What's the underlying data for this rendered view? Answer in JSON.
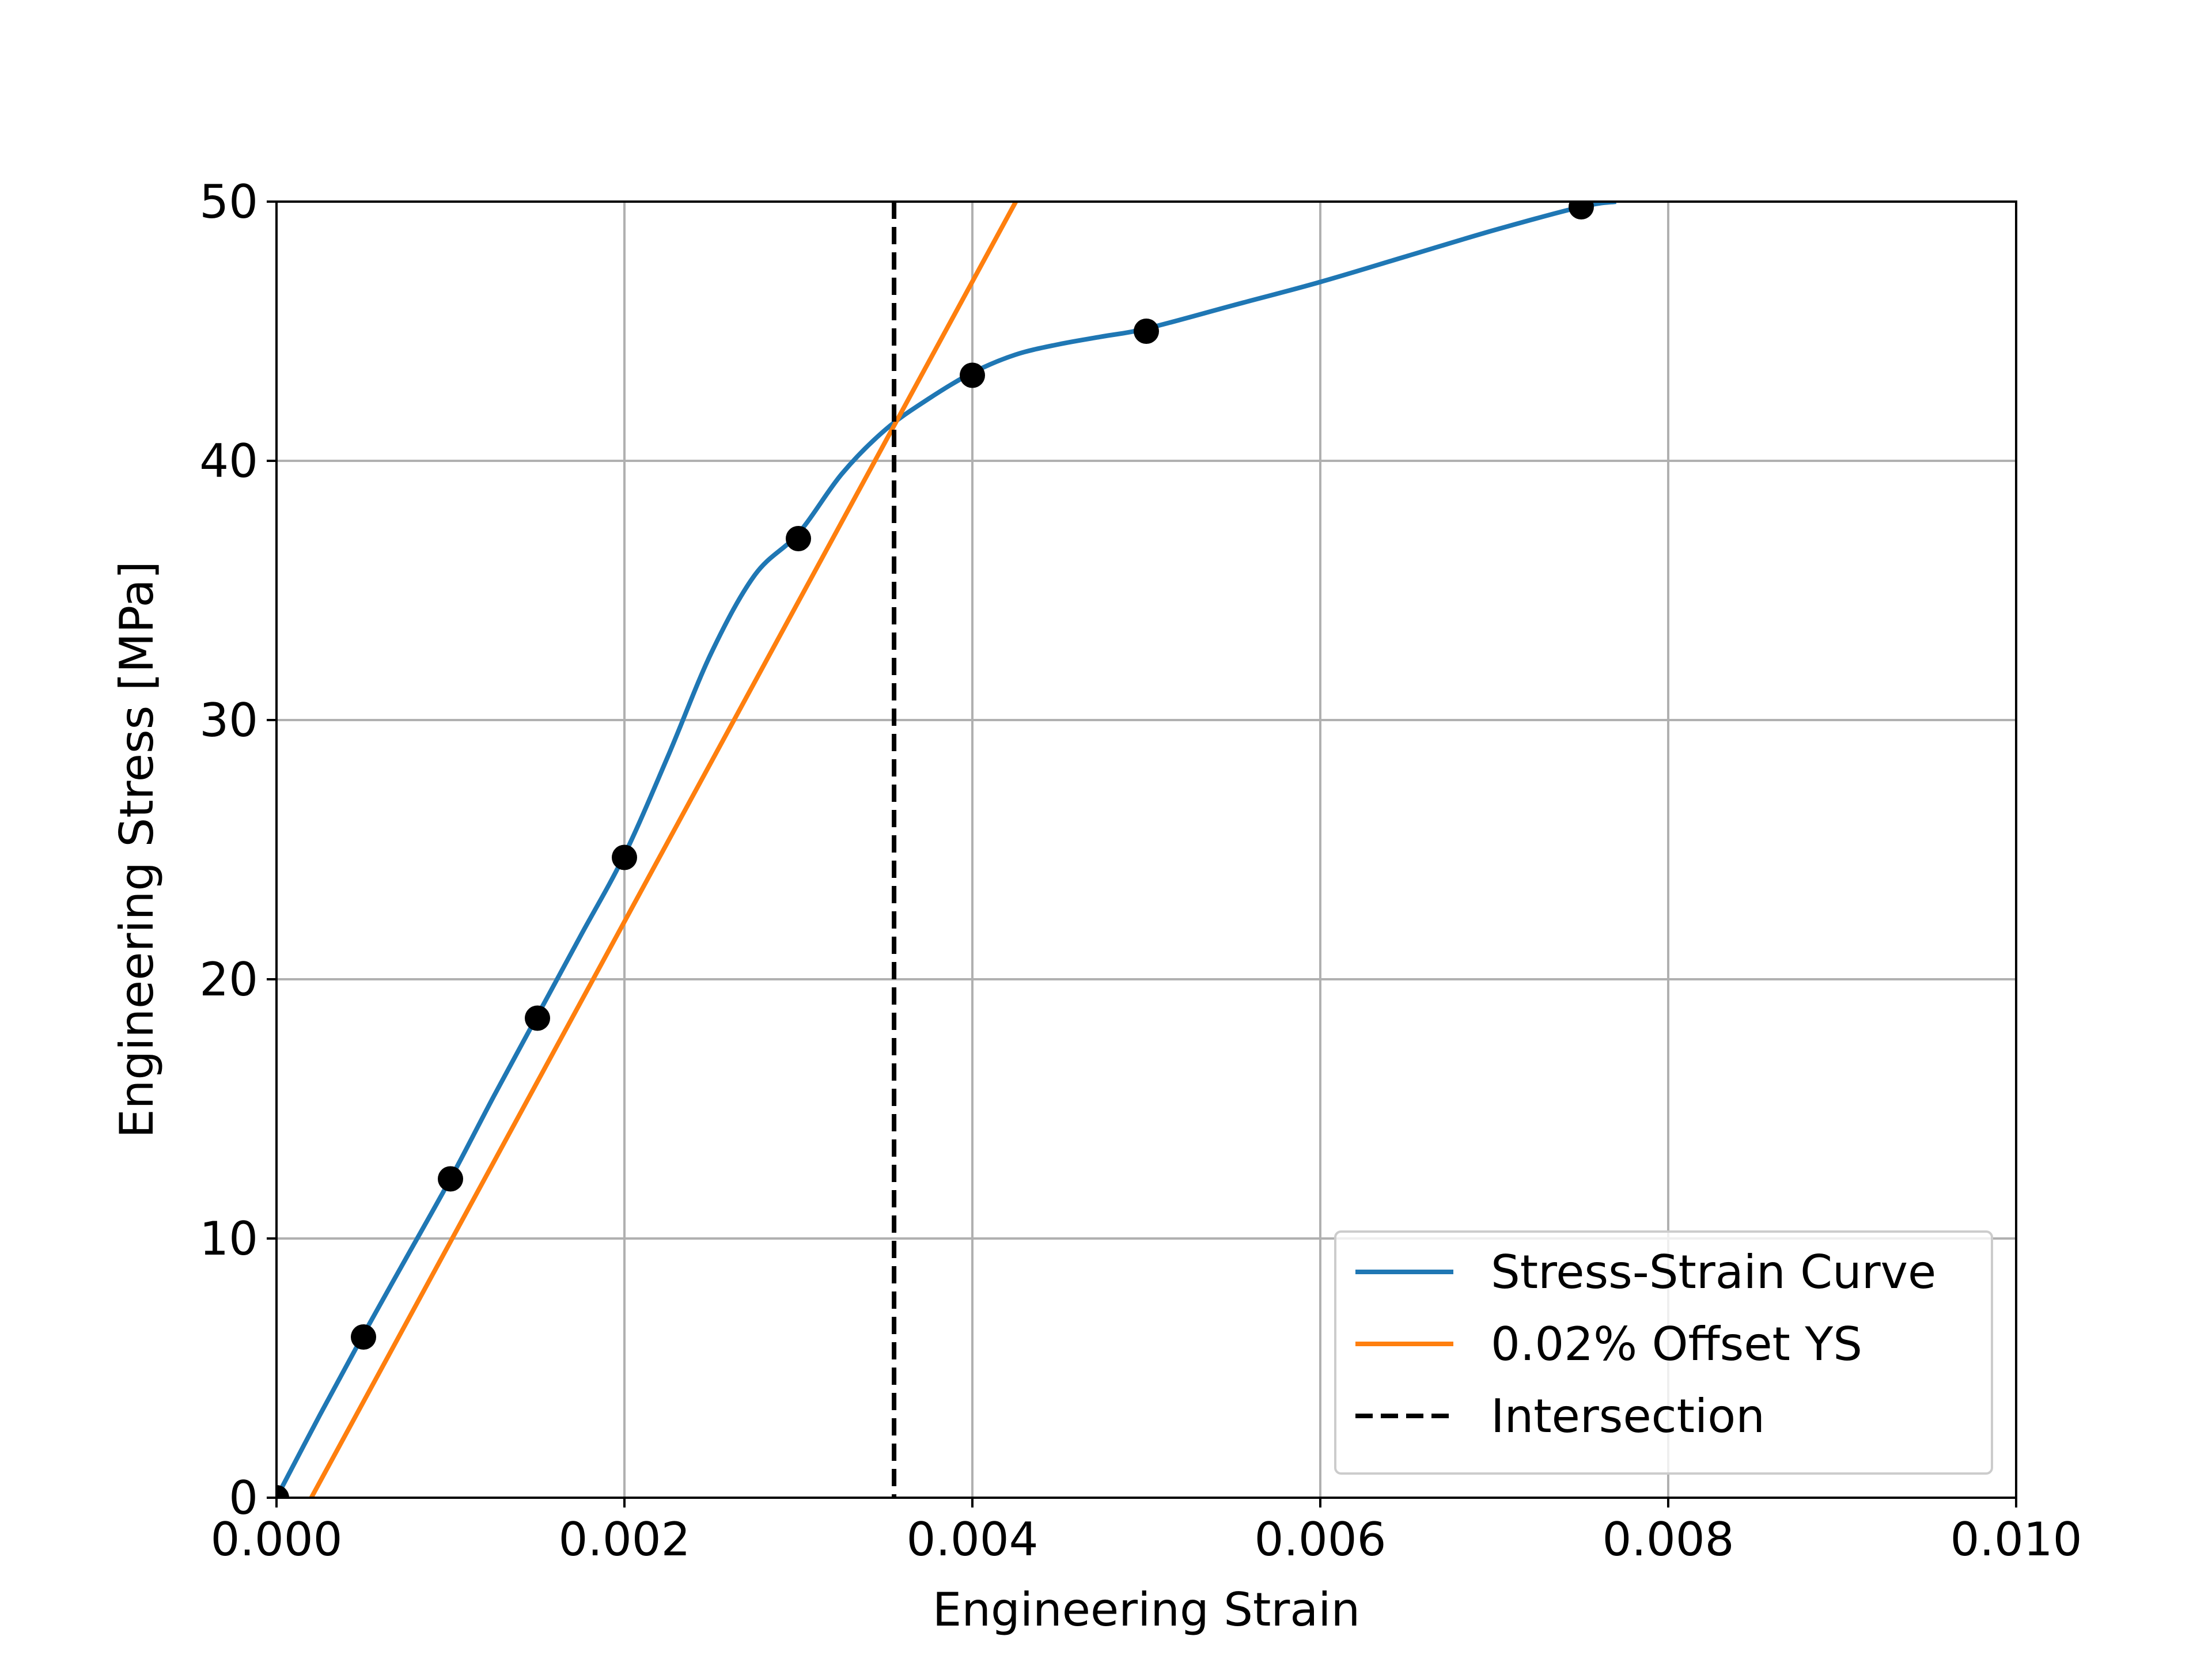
{
  "chart_data": {
    "type": "line",
    "title": "",
    "xlabel": "Engineering Strain",
    "ylabel": "Engineering Stress [MPa]",
    "xlim": [
      0.0,
      0.01
    ],
    "ylim": [
      0,
      50
    ],
    "x_ticks": [
      0.0,
      0.002,
      0.004,
      0.006,
      0.008,
      0.01
    ],
    "x_tick_labels": [
      "0.000",
      "0.002",
      "0.004",
      "0.006",
      "0.008",
      "0.010"
    ],
    "y_ticks": [
      0,
      10,
      20,
      30,
      40,
      50
    ],
    "y_tick_labels": [
      "0",
      "10",
      "20",
      "30",
      "40",
      "50"
    ],
    "grid": true,
    "legend_position": "lower-right",
    "series": [
      {
        "name": "Stress-Strain Curve",
        "kind": "line",
        "color": "#1f77b4",
        "style": "solid",
        "x": [
          0.0,
          0.00025,
          0.0005,
          0.00075,
          0.001,
          0.00125,
          0.0015,
          0.00175,
          0.002,
          0.00225,
          0.0025,
          0.00275,
          0.003,
          0.00325,
          0.0035,
          0.00375,
          0.004,
          0.00425,
          0.0045,
          0.00475,
          0.005,
          0.0055,
          0.006,
          0.0065,
          0.007,
          0.0075,
          0.0077
        ],
        "y": [
          0.0,
          3.2,
          6.3,
          9.3,
          12.3,
          15.5,
          18.6,
          21.7,
          24.8,
          28.6,
          32.6,
          35.6,
          37.2,
          39.5,
          41.2,
          42.4,
          43.4,
          44.1,
          44.5,
          44.8,
          45.1,
          46.0,
          46.9,
          47.9,
          48.9,
          49.8,
          50.0
        ]
      },
      {
        "name": "0.02% Offset YS",
        "kind": "line",
        "color": "#ff7f0e",
        "style": "solid",
        "x": [
          0.0002,
          0.00425
        ],
        "y": [
          0.0,
          50.0
        ]
      },
      {
        "name": "Intersection",
        "kind": "vline",
        "color": "#000000",
        "style": "dashed",
        "x": 0.00355
      },
      {
        "name": "",
        "kind": "scatter",
        "color": "#000000",
        "x": [
          0.0,
          0.0005,
          0.001,
          0.0015,
          0.002,
          0.003,
          0.004,
          0.005,
          0.0075
        ],
        "y": [
          0.0,
          6.2,
          12.3,
          18.5,
          24.7,
          37.0,
          43.3,
          45.0,
          49.8
        ]
      }
    ]
  }
}
